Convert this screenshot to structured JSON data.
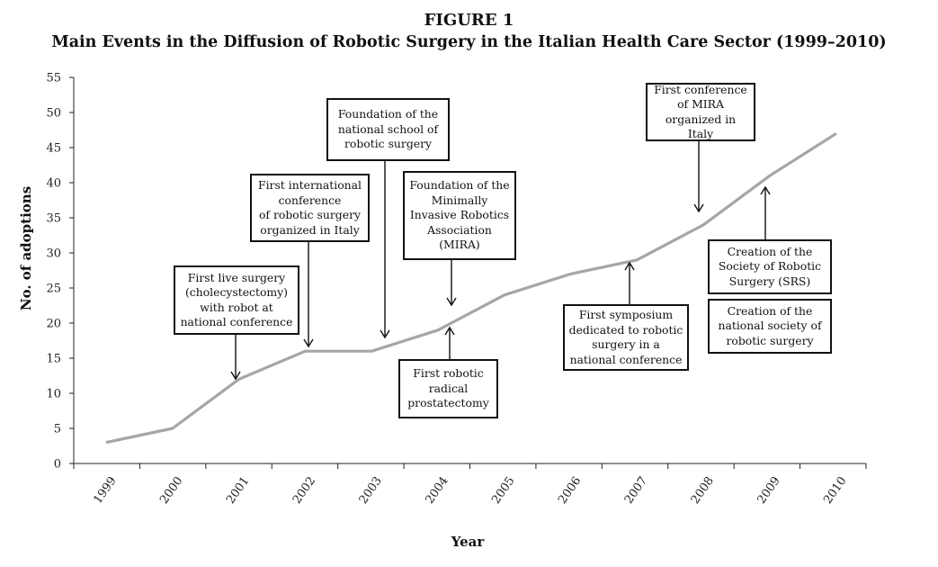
{
  "figure": {
    "label": "FIGURE 1"
  },
  "chart_data": {
    "type": "line",
    "title": "Main Events in the Diffusion of Robotic Surgery in the Italian Health Care Sector (1999–2010)",
    "xlabel": "Year",
    "ylabel": "No. of adoptions",
    "x": [
      "1999",
      "2000",
      "2001",
      "2002",
      "2003",
      "2004",
      "2005",
      "2006",
      "2007",
      "2008",
      "2009",
      "2010"
    ],
    "series": [
      {
        "values": [
          3,
          5,
          12,
          16,
          16,
          19,
          24,
          27,
          29,
          34,
          41,
          47
        ]
      }
    ],
    "ylim": [
      0,
      55
    ],
    "yticks": [
      0,
      5,
      10,
      15,
      20,
      25,
      30,
      35,
      40,
      45,
      50,
      55
    ],
    "grid": false,
    "line_color": "#a6a6a6",
    "annotations": [
      {
        "id": "first-live-surgery",
        "lines": [
          "First live surgery",
          "(cholecystectomy)",
          "with robot at",
          "national conference"
        ]
      },
      {
        "id": "first-international-conference",
        "lines": [
          "First international",
          "conference",
          "of robotic surgery",
          "organized in Italy"
        ]
      },
      {
        "id": "foundation-national-school",
        "lines": [
          "Foundation of the",
          "national school of",
          "robotic surgery"
        ]
      },
      {
        "id": "foundation-mira",
        "lines": [
          "Foundation of the",
          "Minimally",
          "Invasive Robotics",
          "Association",
          "(MIRA)"
        ]
      },
      {
        "id": "first-robotic-prostatectomy",
        "lines": [
          "First robotic",
          "radical",
          "prostatectomy"
        ]
      },
      {
        "id": "first-symposium",
        "lines": [
          "First symposium",
          "dedicated to robotic",
          "surgery in a",
          "national conference"
        ]
      },
      {
        "id": "first-conference-mira",
        "lines": [
          "First conference",
          "of MIRA",
          "organized in Italy"
        ]
      },
      {
        "id": "creation-srs",
        "lines": [
          "Creation of the",
          "Society of Robotic",
          "Surgery (SRS)"
        ]
      },
      {
        "id": "creation-national-society",
        "lines": [
          "Creation of the",
          "national society of",
          "robotic surgery"
        ]
      }
    ]
  }
}
